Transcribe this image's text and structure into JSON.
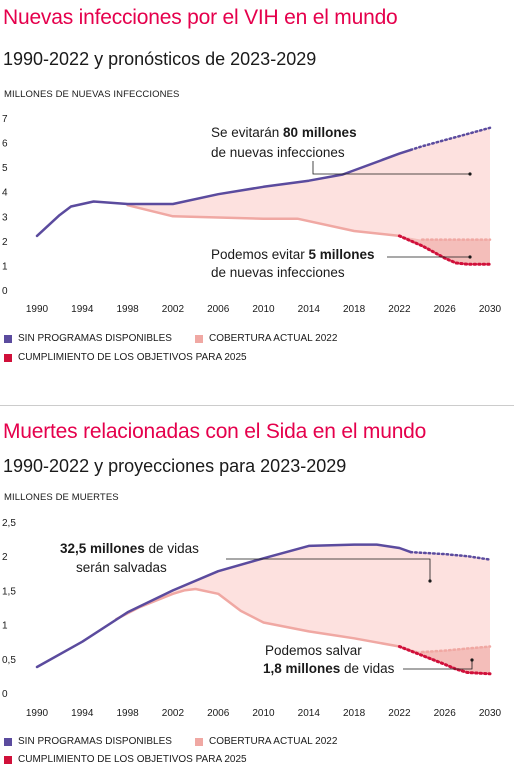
{
  "colors": {
    "accent": "#e5004c",
    "no_programs": "#5b4b9e",
    "current": "#f0a8a3",
    "fill": "#fde1df",
    "targets": "#d0103a",
    "text": "#1a1a1a"
  },
  "chart_data": [
    {
      "type": "line",
      "title": "Nuevas infecciones por el VIH en el mundo",
      "subtitle": "1990-2022 y pronósticos de 2023-2029",
      "ylabel": "MILLONES DE NUEVAS INFECCIONES",
      "ylim": [
        0,
        7
      ],
      "yticks": [
        "0",
        "1",
        "2",
        "3",
        "4",
        "5",
        "6",
        "7"
      ],
      "xticks": [
        "1990",
        "1994",
        "1998",
        "2002",
        "2006",
        "2010",
        "2014",
        "2018",
        "2022",
        "2026",
        "2030"
      ],
      "series": [
        {
          "name": "SIN PROGRAMAS DISPONIBLES",
          "color": "#5b4b9e",
          "x": [
            1990,
            1992,
            1993,
            1995,
            1998,
            2002,
            2006,
            2010,
            2014,
            2017,
            2022,
            2023,
            2024,
            2026,
            2028,
            2030
          ],
          "values": [
            2.2,
            3.05,
            3.4,
            3.6,
            3.5,
            3.5,
            3.9,
            4.2,
            4.45,
            4.7,
            5.55,
            5.7,
            5.85,
            6.1,
            6.35,
            6.6
          ]
        },
        {
          "name": "COBERTURA ACTUAL 2022",
          "color": "#f0a8a3",
          "x": [
            1998,
            2002,
            2006,
            2010,
            2013,
            2018,
            2022,
            2024,
            2026,
            2028,
            2030
          ],
          "values": [
            3.45,
            3.0,
            2.95,
            2.9,
            2.9,
            2.4,
            2.2,
            2.05,
            2.05,
            2.05,
            2.05
          ]
        },
        {
          "name": "CUMPLIMIENTO DE LOS OBJETIVOS PARA 2025",
          "color": "#d0103a",
          "x": [
            2022,
            2024,
            2025,
            2026,
            2027,
            2028,
            2030
          ],
          "values": [
            2.2,
            1.8,
            1.55,
            1.3,
            1.1,
            1.05,
            1.05
          ]
        }
      ],
      "projection_start": 2023,
      "annotations": [
        {
          "text_parts": [
            "Se evitarán ",
            "80 millones",
            ""
          ],
          "text2": "de nuevas infecciones"
        },
        {
          "text_parts": [
            "Podemos evitar ",
            "5 millones",
            ""
          ],
          "text2": "de nuevas infecciones"
        }
      ],
      "legend": [
        "SIN PROGRAMAS DISPONIBLES",
        "COBERTURA ACTUAL 2022",
        "CUMPLIMIENTO DE LOS OBJETIVOS PARA 2025"
      ]
    },
    {
      "type": "line",
      "title": "Muertes relacionadas con el Sida en el mundo",
      "subtitle": "1990-2022 y proyecciones para 2023-2029",
      "ylabel": "MILLONES DE MUERTES",
      "ylim": [
        0,
        2.5
      ],
      "yticks": [
        "0",
        "0,5",
        "1",
        "1,5",
        "2",
        "2,5"
      ],
      "xticks": [
        "1990",
        "1994",
        "1998",
        "2002",
        "2006",
        "2010",
        "2014",
        "2018",
        "2022",
        "2026",
        "2030"
      ],
      "series": [
        {
          "name": "SIN PROGRAMAS DISPONIBLES",
          "color": "#5b4b9e",
          "x": [
            1990,
            1994,
            1998,
            2002,
            2006,
            2010,
            2014,
            2018,
            2020,
            2022,
            2023,
            2024,
            2026,
            2028,
            2030
          ],
          "values": [
            0.38,
            0.75,
            1.18,
            1.5,
            1.78,
            1.97,
            2.15,
            2.17,
            2.17,
            2.12,
            2.06,
            2.05,
            2.03,
            2.0,
            1.95
          ]
        },
        {
          "name": "COBERTURA ACTUAL 2022",
          "color": "#f0a8a3",
          "x": [
            1997,
            1999,
            2002,
            2003,
            2004,
            2006,
            2008,
            2010,
            2014,
            2018,
            2022,
            2024,
            2026,
            2028,
            2030
          ],
          "values": [
            1.08,
            1.25,
            1.45,
            1.5,
            1.52,
            1.45,
            1.2,
            1.03,
            0.9,
            0.8,
            0.68,
            0.6,
            0.62,
            0.65,
            0.68
          ]
        },
        {
          "name": "CUMPLIMIENTO DE LOS OBJETIVOS PARA 2025",
          "color": "#d0103a",
          "x": [
            2022,
            2024,
            2026,
            2027,
            2028,
            2030
          ],
          "values": [
            0.68,
            0.55,
            0.42,
            0.35,
            0.3,
            0.28
          ]
        }
      ],
      "projection_start": 2023,
      "annotations": [
        {
          "text_parts": [
            "",
            "32,5 millones",
            " de vidas"
          ],
          "text2": "serán salvadas"
        },
        {
          "text_parts": [
            "Podemos salvar",
            "",
            ""
          ],
          "text2_parts": [
            "",
            "1,8 millones",
            " de vidas"
          ]
        }
      ],
      "legend": [
        "SIN PROGRAMAS DISPONIBLES",
        "COBERTURA ACTUAL 2022",
        "CUMPLIMIENTO DE LOS OBJETIVOS PARA 2025"
      ]
    }
  ]
}
